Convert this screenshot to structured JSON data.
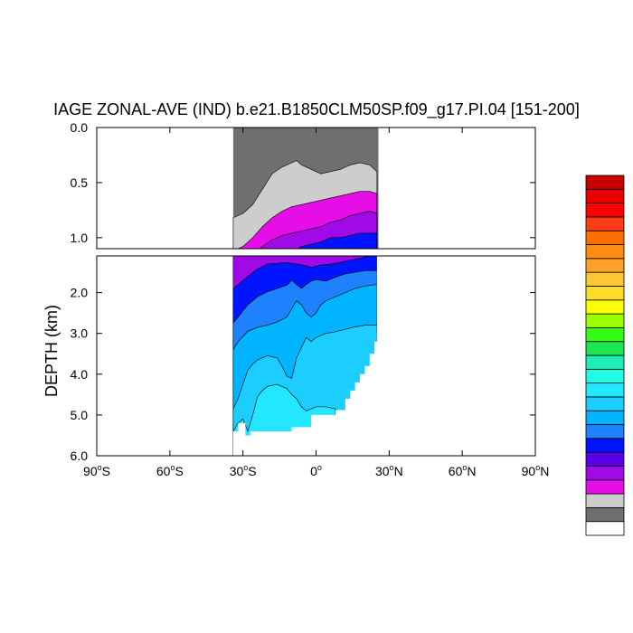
{
  "chart_data": {
    "type": "contour",
    "title": "IAGE ZONAL-AVE (IND) b.e21.B1850CLM50SP.f09_g17.PI.04 [151-200]",
    "ylabel": "DEPTH (km)",
    "xlabel": "",
    "x_range": [
      -90,
      90
    ],
    "upper_panel": {
      "depth_range": [
        0.0,
        1.1
      ],
      "y_ticks": [
        "0.0",
        "0.5",
        "1.0"
      ]
    },
    "lower_panel": {
      "depth_range": [
        1.1,
        6.0
      ],
      "y_ticks": [
        "2.0",
        "3.0",
        "4.0",
        "5.0",
        "6.0"
      ]
    },
    "x_ticks": [
      {
        "value": -90,
        "deg": "90",
        "hemi": "S"
      },
      {
        "value": -60,
        "deg": "60",
        "hemi": "S"
      },
      {
        "value": -30,
        "deg": "30",
        "hemi": "S"
      },
      {
        "value": 0,
        "deg": "0",
        "hemi": ""
      },
      {
        "value": 30,
        "deg": "30",
        "hemi": "N"
      },
      {
        "value": 60,
        "deg": "60",
        "hemi": "N"
      },
      {
        "value": 90,
        "deg": "90",
        "hemi": "N"
      }
    ],
    "colorbar": [
      "#ffffff",
      "#6f6f6f",
      "#cdcdcd",
      "#e60ee6",
      "#a00ae6",
      "#5a00e6",
      "#0014ff",
      "#1e82ff",
      "#00b4ff",
      "#1ecdff",
      "#23e6ff",
      "#1effe6",
      "#1eedb4",
      "#1ee650",
      "#32ff14",
      "#9bff00",
      "#ffff00",
      "#ffdc28",
      "#ffc832",
      "#ffa028",
      "#ff8c14",
      "#ff6e00",
      "#ff3c14",
      "#ff0000",
      "#e60000",
      "#c80000"
    ],
    "upper_bands": [
      {
        "color": "#cdcdcd",
        "top": [
          [
            -34,
            0.82
          ],
          [
            -30,
            0.78
          ],
          [
            -26,
            0.7
          ],
          [
            -22,
            0.56
          ],
          [
            -18,
            0.42
          ],
          [
            -14,
            0.36
          ],
          [
            -10,
            0.32
          ],
          [
            -8,
            0.3
          ],
          [
            -6,
            0.34
          ],
          [
            -2,
            0.38
          ],
          [
            2,
            0.42
          ],
          [
            6,
            0.4
          ],
          [
            10,
            0.38
          ],
          [
            14,
            0.34
          ],
          [
            18,
            0.32
          ],
          [
            22,
            0.34
          ],
          [
            25,
            0.4
          ]
        ]
      },
      {
        "color": "#e60ee6",
        "top": [
          [
            -34,
            1.12
          ],
          [
            -30,
            1.08
          ],
          [
            -26,
            1.0
          ],
          [
            -22,
            0.9
          ],
          [
            -18,
            0.82
          ],
          [
            -14,
            0.76
          ],
          [
            -10,
            0.72
          ],
          [
            -6,
            0.7
          ],
          [
            -2,
            0.68
          ],
          [
            2,
            0.66
          ],
          [
            6,
            0.64
          ],
          [
            10,
            0.62
          ],
          [
            14,
            0.6
          ],
          [
            18,
            0.58
          ],
          [
            22,
            0.58
          ],
          [
            25,
            0.6
          ]
        ]
      },
      {
        "color": "#a00ae6",
        "top": [
          [
            -34,
            1.2
          ],
          [
            -26,
            1.15
          ],
          [
            -22,
            1.08
          ],
          [
            -18,
            1.02
          ],
          [
            -14,
            0.98
          ],
          [
            -10,
            0.96
          ],
          [
            -6,
            0.94
          ],
          [
            -2,
            0.92
          ],
          [
            2,
            0.9
          ],
          [
            6,
            0.86
          ],
          [
            10,
            0.84
          ],
          [
            14,
            0.8
          ],
          [
            18,
            0.78
          ],
          [
            22,
            0.76
          ],
          [
            25,
            0.78
          ]
        ]
      },
      {
        "color": "#0014ff",
        "top": [
          [
            -34,
            1.3
          ],
          [
            -14,
            1.3
          ],
          [
            -10,
            1.14
          ],
          [
            -6,
            1.08
          ],
          [
            -2,
            1.06
          ],
          [
            2,
            1.04
          ],
          [
            6,
            1.0
          ],
          [
            10,
            1.0
          ],
          [
            14,
            0.98
          ],
          [
            18,
            0.96
          ],
          [
            22,
            0.96
          ],
          [
            25,
            0.96
          ]
        ]
      }
    ],
    "lower_bands": [
      {
        "color": "#a00ae6",
        "top": [
          [
            -34,
            1.1
          ],
          [
            25,
            1.1
          ]
        ]
      },
      {
        "color": "#0014ff",
        "top": [
          [
            -34,
            1.9
          ],
          [
            -32,
            1.8
          ],
          [
            -28,
            1.6
          ],
          [
            -24,
            1.42
          ],
          [
            -20,
            1.3
          ],
          [
            -16,
            1.28
          ],
          [
            -12,
            1.26
          ],
          [
            -8,
            1.3
          ],
          [
            -4,
            1.34
          ],
          [
            -2,
            1.38
          ],
          [
            2,
            1.32
          ],
          [
            6,
            1.3
          ],
          [
            10,
            1.26
          ],
          [
            14,
            1.2
          ],
          [
            18,
            1.16
          ],
          [
            22,
            1.1
          ],
          [
            25,
            1.1
          ]
        ]
      },
      {
        "color": "#1e82ff",
        "top": [
          [
            -34,
            2.75
          ],
          [
            -32,
            2.6
          ],
          [
            -28,
            2.3
          ],
          [
            -24,
            2.1
          ],
          [
            -20,
            1.98
          ],
          [
            -16,
            1.9
          ],
          [
            -14,
            1.86
          ],
          [
            -12,
            1.82
          ],
          [
            -10,
            1.7
          ],
          [
            -8,
            1.8
          ],
          [
            -6,
            1.9
          ],
          [
            -4,
            1.8
          ],
          [
            -2,
            1.72
          ],
          [
            0,
            1.68
          ],
          [
            4,
            1.72
          ],
          [
            8,
            1.62
          ],
          [
            12,
            1.54
          ],
          [
            16,
            1.5
          ],
          [
            20,
            1.46
          ],
          [
            25,
            1.46
          ]
        ]
      },
      {
        "color": "#00b4ff",
        "top": [
          [
            -34,
            3.4
          ],
          [
            -32,
            3.2
          ],
          [
            -28,
            2.95
          ],
          [
            -24,
            2.85
          ],
          [
            -20,
            2.8
          ],
          [
            -16,
            2.72
          ],
          [
            -12,
            2.6
          ],
          [
            -10,
            2.4
          ],
          [
            -8,
            2.2
          ],
          [
            -6,
            2.3
          ],
          [
            -4,
            2.5
          ],
          [
            -2,
            2.6
          ],
          [
            0,
            2.5
          ],
          [
            2,
            2.3
          ],
          [
            4,
            2.2
          ],
          [
            8,
            2.1
          ],
          [
            12,
            2.0
          ],
          [
            16,
            1.9
          ],
          [
            20,
            1.84
          ],
          [
            25,
            1.8
          ]
        ]
      },
      {
        "color": "#1ecdff",
        "top": [
          [
            -34,
            4.85
          ],
          [
            -32,
            4.6
          ],
          [
            -28,
            3.9
          ],
          [
            -26,
            3.75
          ],
          [
            -24,
            3.65
          ],
          [
            -20,
            3.55
          ],
          [
            -16,
            3.6
          ],
          [
            -14,
            3.8
          ],
          [
            -12,
            4.05
          ],
          [
            -10,
            4.1
          ],
          [
            -8,
            3.6
          ],
          [
            -6,
            3.35
          ],
          [
            -4,
            3.1
          ],
          [
            -2,
            3.2
          ],
          [
            0,
            3.1
          ],
          [
            4,
            3.0
          ],
          [
            8,
            2.96
          ],
          [
            12,
            2.9
          ],
          [
            16,
            2.84
          ],
          [
            20,
            2.8
          ],
          [
            25,
            2.8
          ]
        ]
      },
      {
        "color": "#23e6ff",
        "top": [
          [
            -34,
            5.4
          ],
          [
            -32,
            5.2
          ],
          [
            -30,
            5.1
          ],
          [
            -28,
            5.4
          ],
          [
            -26,
            5.0
          ],
          [
            -24,
            4.55
          ],
          [
            -22,
            4.4
          ],
          [
            -20,
            4.3
          ],
          [
            -16,
            4.25
          ],
          [
            -12,
            4.35
          ],
          [
            -10,
            4.5
          ],
          [
            -8,
            4.6
          ],
          [
            -6,
            4.8
          ],
          [
            -4,
            4.9
          ],
          [
            -2,
            4.85
          ],
          [
            0,
            4.8
          ],
          [
            4,
            4.8
          ],
          [
            8,
            4.85
          ]
        ]
      }
    ],
    "lower_mask_steps": [
      [
        -34,
        5.4
      ],
      [
        -32,
        5.2
      ],
      [
        -29,
        5.5
      ],
      [
        -27,
        5.4
      ],
      [
        -16,
        5.4
      ],
      [
        -10,
        5.3
      ],
      [
        -2,
        5.0
      ],
      [
        8,
        4.88
      ],
      [
        12,
        4.6
      ],
      [
        14,
        4.4
      ],
      [
        16,
        4.2
      ],
      [
        18,
        4.0
      ],
      [
        20,
        3.8
      ],
      [
        22,
        3.5
      ],
      [
        24,
        3.2
      ],
      [
        25,
        3.0
      ]
    ]
  }
}
